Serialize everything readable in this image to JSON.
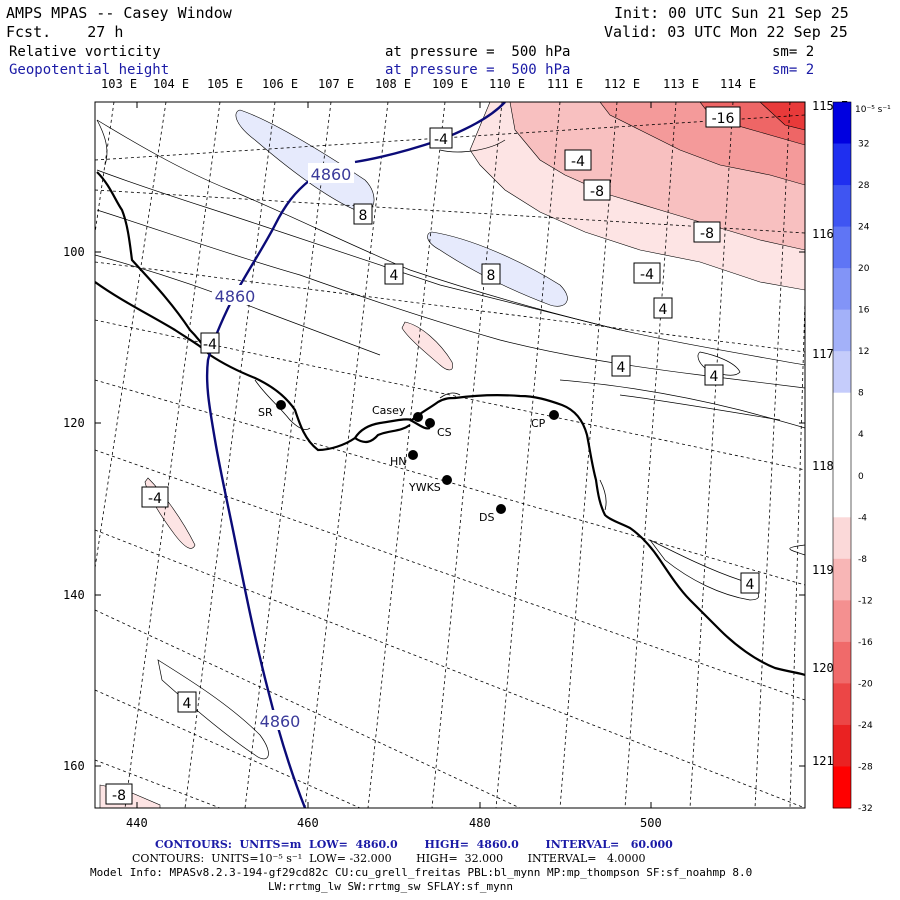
{
  "header": {
    "left_line1": "AMPS MPAS -- Casey Window",
    "left_line2": "Fcst.    27 h",
    "init": "Init: 00 UTC Sun 21 Sep 25",
    "valid": "Valid: 03 UTC Mon 22 Sep 25",
    "field1_name": "Relative vorticity",
    "field1_level": "at pressure =  500 hPa",
    "field1_sm": "sm= 2",
    "field2_name": "Geopotential height",
    "field2_level": "at pressure =  500 hPa",
    "field2_sm": "sm= 2"
  },
  "lon_top": [
    "103 E",
    "104 E",
    "105 E",
    "106 E",
    "107 E",
    "108 E",
    "109 E",
    "110 E",
    "111 E",
    "112 E",
    "113 E",
    "114 E"
  ],
  "lon_right": [
    "115 E",
    "116 E",
    "117 E",
    "118 E",
    "119 E",
    "120 E",
    "121 E"
  ],
  "y_ticks": [
    "100",
    "120",
    "140",
    "160"
  ],
  "x_ticks": [
    "440",
    "460",
    "480",
    "500"
  ],
  "stations": [
    "SR",
    "Casey",
    "CS",
    "HN",
    "YWKS",
    "DS",
    "CP"
  ],
  "contour_labels": {
    "height": [
      "4860",
      "4860",
      "4860"
    ],
    "vort": [
      "-4",
      "-16",
      "-4",
      "-8",
      "8",
      "-8",
      "4",
      "8",
      "-4",
      "4",
      "-4",
      "4",
      "4",
      "-4",
      "4",
      "4",
      "-8"
    ]
  },
  "colorbar": {
    "units": "10⁻⁵ s⁻¹",
    "labels": [
      "32",
      "28",
      "24",
      "20",
      "16",
      "12",
      "8",
      "4",
      "0",
      "-4",
      "-8",
      "-12",
      "-16",
      "-20",
      "-24",
      "-28",
      "-32"
    ],
    "colors": [
      "#0000e0",
      "#1f2ff0",
      "#3f55f2",
      "#5f75f5",
      "#8294f7",
      "#a3b1f9",
      "#c5ccfb",
      "#ffffff",
      "#ffffff",
      "#ffffff",
      "#fbd9d9",
      "#f8b6b6",
      "#f49090",
      "#f06a6a",
      "#ec4646",
      "#ea2222",
      "#ff0000"
    ]
  },
  "footer": {
    "line1": "CONTOURS:  UNITS=m  LOW=  4860.0       HIGH=  4860.0       INTERVAL=   60.000",
    "line2": "CONTOURS:  UNITS=10⁻⁵ s⁻¹  LOW= -32.000       HIGH=  32.000       INTERVAL=   4.0000",
    "line3": "Model Info: MPASv8.2.3-194-gf29cd82c CU:cu_grell_freitas PBL:bl_mynn MP:mp_thompson SF:sf_noahmp 8.0",
    "line4": "LW:rrtmg_lw SW:rrtmg_sw SFLAY:sf_mynn"
  }
}
